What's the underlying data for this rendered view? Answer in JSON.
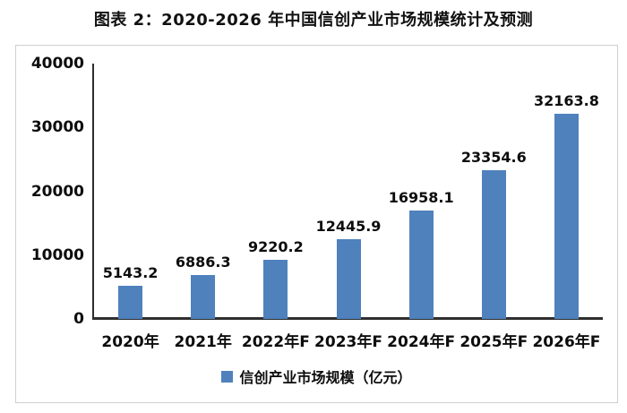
{
  "title": "图表 2：2020-2026 年中国信创产业市场规模统计及预测",
  "chart_data": {
    "type": "bar",
    "categories": [
      "2020年",
      "2021年",
      "2022年F",
      "2023年F",
      "2024年F",
      "2025年F",
      "2026年F"
    ],
    "values": [
      5143.2,
      6886.3,
      9220.2,
      12445.9,
      16958.1,
      23354.6,
      32163.8
    ],
    "value_labels": [
      "5143.2",
      "6886.3",
      "9220.2",
      "12445.9",
      "16958.1",
      "23354.6",
      "32163.8"
    ],
    "title": "图表 2：2020-2026 年中国信创产业市场规模统计及预测",
    "xlabel": "",
    "ylabel": "",
    "ylim": [
      0,
      40000
    ],
    "yticks": [
      0,
      10000,
      20000,
      30000,
      40000
    ],
    "ytick_labels": [
      "0",
      "10000",
      "20000",
      "30000",
      "40000"
    ],
    "legend": [
      "信创产业市场规模（亿元）"
    ],
    "legend_position": "bottom",
    "grid": false,
    "bar_color": "#4F81BD",
    "axis_color": "#2e2e2e"
  }
}
